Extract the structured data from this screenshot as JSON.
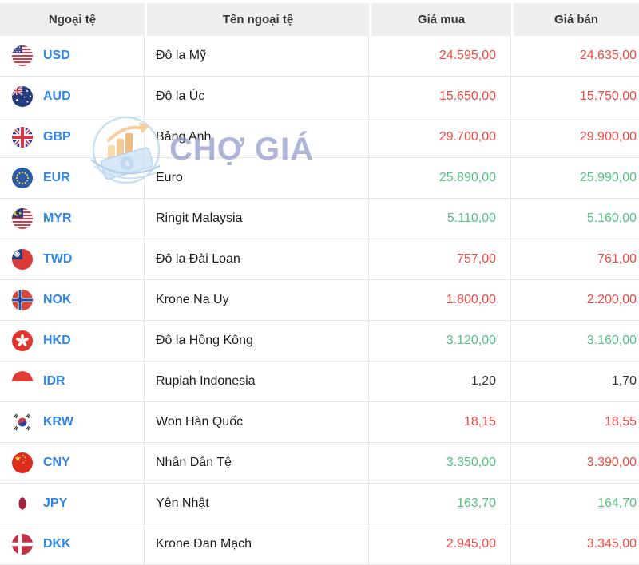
{
  "watermark": {
    "text": "CHỢ GIÁ"
  },
  "colors": {
    "currency_code_blue": "#2f86eb",
    "price_red": "#ef4a42",
    "price_green": "#55c181",
    "price_neutral": "#333333",
    "header_bg": "#efefef",
    "row_border": "#e5e5e5"
  },
  "table": {
    "columns": [
      {
        "key": "code",
        "label": "Ngoại tệ"
      },
      {
        "key": "name",
        "label": "Tên ngoại tệ"
      },
      {
        "key": "buy",
        "label": "Giá mua"
      },
      {
        "key": "sell",
        "label": "Giá bán"
      }
    ],
    "rows": [
      {
        "code": "USD",
        "flag": "us-flag",
        "name": "Đô la Mỹ",
        "buy": "24.595,00",
        "buy_color": "red",
        "sell": "24.635,00",
        "sell_color": "red"
      },
      {
        "code": "AUD",
        "flag": "au-flag",
        "name": "Đô la Úc",
        "buy": "15.650,00",
        "buy_color": "red",
        "sell": "15.750,00",
        "sell_color": "red"
      },
      {
        "code": "GBP",
        "flag": "gb-flag",
        "name": "Bảng Anh",
        "buy": "29.700,00",
        "buy_color": "red",
        "sell": "29.900,00",
        "sell_color": "red"
      },
      {
        "code": "EUR",
        "flag": "eu-flag",
        "name": "Euro",
        "buy": "25.890,00",
        "buy_color": "green",
        "sell": "25.990,00",
        "sell_color": "green"
      },
      {
        "code": "MYR",
        "flag": "my-flag",
        "name": "Ringit Malaysia",
        "buy": "5.110,00",
        "buy_color": "green",
        "sell": "5.160,00",
        "sell_color": "green"
      },
      {
        "code": "TWD",
        "flag": "tw-flag",
        "name": "Đô la Đài Loan",
        "buy": "757,00",
        "buy_color": "red",
        "sell": "761,00",
        "sell_color": "red"
      },
      {
        "code": "NOK",
        "flag": "no-flag",
        "name": "Krone Na Uy",
        "buy": "1.800,00",
        "buy_color": "red",
        "sell": "2.200,00",
        "sell_color": "red"
      },
      {
        "code": "HKD",
        "flag": "hk-flag",
        "name": "Đô la Hồng Kông",
        "buy": "3.120,00",
        "buy_color": "green",
        "sell": "3.160,00",
        "sell_color": "green"
      },
      {
        "code": "IDR",
        "flag": "id-flag",
        "name": "Rupiah Indonesia",
        "buy": "1,20",
        "buy_color": "dark",
        "sell": "1,70",
        "sell_color": "dark"
      },
      {
        "code": "KRW",
        "flag": "kr-flag",
        "name": "Won Hàn Quốc",
        "buy": "18,15",
        "buy_color": "red",
        "sell": "18,55",
        "sell_color": "red"
      },
      {
        "code": "CNY",
        "flag": "cn-flag",
        "name": "Nhân Dân Tệ",
        "buy": "3.350,00",
        "buy_color": "green",
        "sell": "3.390,00",
        "sell_color": "red"
      },
      {
        "code": "JPY",
        "flag": "jp-flag",
        "name": "Yên Nhật",
        "buy": "163,70",
        "buy_color": "green",
        "sell": "164,70",
        "sell_color": "green"
      },
      {
        "code": "DKK",
        "flag": "dk-flag",
        "name": "Krone Đan Mạch",
        "buy": "2.945,00",
        "buy_color": "red",
        "sell": "3.345,00",
        "sell_color": "red"
      }
    ]
  }
}
